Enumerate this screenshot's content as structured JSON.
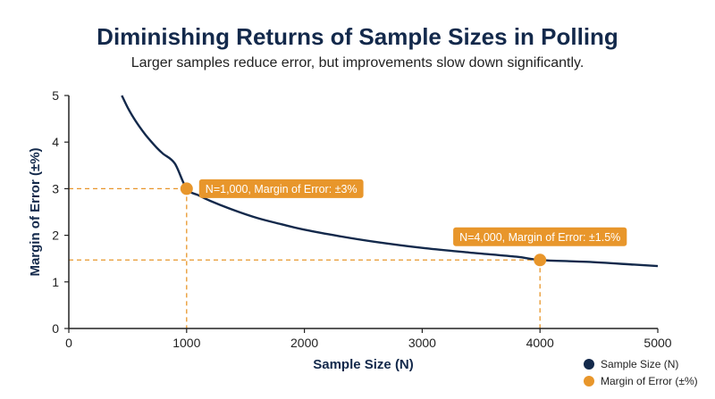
{
  "chart_data": {
    "type": "line",
    "title": "Diminishing Returns of Sample Sizes in Polling",
    "subtitle": "Larger samples reduce error, but improvements slow down significantly.",
    "xlabel": "Sample Size (N)",
    "ylabel": "Margin of Error (±%)",
    "xlim": [
      0,
      5000
    ],
    "ylim": [
      0,
      5
    ],
    "x_ticks": [
      0,
      1000,
      2000,
      3000,
      4000,
      5000
    ],
    "y_ticks": [
      0,
      1,
      2,
      3,
      4,
      5
    ],
    "grid": false,
    "legend_position": "bottom-right",
    "series": [
      {
        "name": "Sample Size (N)",
        "color": "#13294b",
        "x": [
          450,
          500,
          550,
          600,
          650,
          700,
          750,
          800,
          900,
          1000,
          1100,
          1200,
          1400,
          1600,
          1800,
          2000,
          2300,
          2600,
          3000,
          3400,
          3800,
          4000,
          4400,
          4800,
          5000
        ],
        "y": [
          5,
          4.74,
          4.52,
          4.33,
          4.16,
          4.01,
          3.87,
          3.75,
          3.54,
          3.0,
          2.86,
          2.74,
          2.54,
          2.37,
          2.24,
          2.12,
          1.98,
          1.86,
          1.73,
          1.63,
          1.54,
          1.47,
          1.43,
          1.37,
          1.34
        ]
      }
    ],
    "highlights": {
      "name": "Margin of Error (±%)",
      "color": "#e8962b",
      "points": [
        {
          "x": 1000,
          "y": 3.0,
          "label": "N=1,000, Margin of Error: ±3%"
        },
        {
          "x": 4000,
          "y": 1.47,
          "label": "N=4,000, Margin of Error: ±1.5%"
        }
      ]
    }
  }
}
